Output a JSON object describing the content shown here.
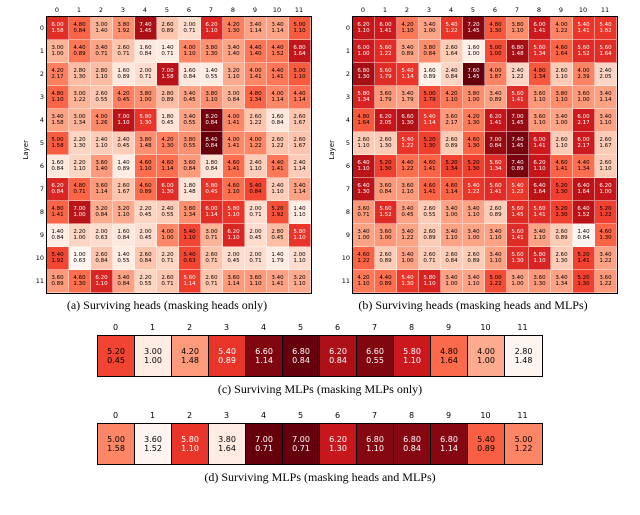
{
  "figure": {
    "background": "#ffffff",
    "colormap_low": "#fff5f0",
    "colormap_high": "#67000d"
  },
  "chart_data": [
    {
      "id": "a",
      "type": "heatmap",
      "caption": "(a) Surviving heads (masking heads only)",
      "ylabel": "Layer",
      "colormap": "Reds",
      "x_ticks": [
        "0",
        "1",
        "2",
        "3",
        "4",
        "5",
        "6",
        "7",
        "8",
        "9",
        "10",
        "11"
      ],
      "y_ticks": [
        "0",
        "1",
        "2",
        "3",
        "4",
        "5",
        "6",
        "7",
        "8",
        "9",
        "10",
        "11"
      ],
      "values": [
        [
          6.0,
          4.8,
          3.0,
          3.8,
          7.4,
          2.6,
          2.0,
          6.2,
          4.2,
          3.4,
          3.4,
          5.0
        ],
        [
          3.0,
          4.4,
          3.4,
          2.6,
          1.6,
          1.4,
          4.0,
          3.8,
          3.4,
          4.4,
          4.4,
          6.8
        ],
        [
          4.2,
          2.8,
          2.8,
          1.6,
          2.0,
          7.0,
          1.6,
          1.4,
          3.2,
          4.0,
          4.4,
          5.0
        ],
        [
          4.8,
          3.0,
          2.6,
          4.2,
          3.8,
          2.8,
          3.4,
          3.8,
          3.0,
          4.8,
          4.0,
          4.4
        ],
        [
          3.4,
          3.0,
          4.0,
          7.0,
          5.8,
          1.8,
          3.4,
          8.2,
          4.0,
          2.6,
          1.6,
          2.6
        ],
        [
          5.0,
          2.2,
          2.4,
          2.4,
          3.8,
          4.2,
          3.8,
          8.4,
          4.0,
          4.0,
          2.6,
          2.6
        ],
        [
          1.6,
          2.2,
          3.6,
          1.4,
          4.6,
          4.6,
          3.6,
          1.8,
          4.6,
          2.4,
          4.4,
          2.4
        ],
        [
          6.2,
          4.8,
          3.6,
          2.6,
          4.6,
          6.0,
          1.8,
          5.8,
          4.6,
          5.4,
          2.4,
          3.4
        ],
        [
          4.8,
          7.0,
          3.2,
          3.2,
          2.2,
          2.4,
          3.8,
          6.0,
          5.8,
          2.0,
          5.2,
          1.4
        ],
        [
          1.4,
          2.2,
          2.0,
          1.6,
          2.0,
          4.0,
          5.4,
          3.0,
          6.2,
          2.0,
          2.8,
          5.8
        ],
        [
          5.4,
          1.0,
          2.6,
          1.4,
          2.6,
          2.2,
          5.4,
          2.6,
          2.0,
          2.0,
          1.4,
          2.0
        ],
        [
          3.6,
          4.6,
          6.2,
          3.4,
          2.2,
          2.6,
          5.6,
          2.6,
          3.6,
          3.6,
          3.4,
          3.2
        ]
      ],
      "values_sub": [
        [
          1.58,
          0.84,
          1.4,
          1.92,
          1.45,
          0.89,
          0.71,
          1.1,
          1.3,
          1.14,
          1.14,
          1.1
        ],
        [
          1.0,
          0.89,
          0.71,
          0.71,
          0.84,
          0.71,
          1.1,
          1.3,
          1.4,
          1.4,
          1.52,
          1.64
        ],
        [
          2.17,
          1.3,
          1.1,
          0.89,
          0.71,
          1.58,
          0.84,
          0.55,
          1.1,
          1.41,
          1.41,
          1.1
        ],
        [
          1.1,
          1.22,
          0.55,
          0.45,
          1.0,
          0.89,
          0.45,
          1.1,
          0.84,
          1.34,
          1.14,
          1.14
        ],
        [
          1.58,
          1.34,
          1.26,
          1.1,
          1.3,
          0.45,
          0.55,
          0.84,
          1.41,
          1.22,
          0.84,
          1.67
        ],
        [
          1.58,
          1.3,
          1.1,
          0.45,
          1.48,
          1.3,
          0.55,
          0.84,
          1.41,
          1.22,
          1.22,
          1.67
        ],
        [
          0.84,
          1.1,
          1.4,
          0.89,
          1.1,
          1.14,
          0.84,
          0.84,
          1.41,
          1.1,
          1.41,
          1.14
        ],
        [
          0.84,
          0.71,
          1.14,
          1.67,
          0.89,
          1.3,
          1.48,
          0.45,
          1.1,
          0.84,
          1.1,
          1.14
        ],
        [
          1.41,
          1.0,
          0.84,
          1.1,
          0.45,
          0.55,
          1.34,
          1.14,
          1.1,
          0.71,
          1.92,
          1.1
        ],
        [
          0.84,
          1.0,
          0.63,
          0.84,
          0.45,
          1.0,
          1.1,
          0.71,
          1.1,
          0.45,
          0.45,
          1.1
        ],
        [
          1.92,
          0.63,
          0.84,
          0.55,
          0.84,
          0.71,
          0.63,
          0.71,
          0.45,
          0.71,
          1.79,
          1.1
        ],
        [
          0.89,
          1.3,
          1.1,
          0.84,
          0.55,
          0.71,
          1.14,
          0.71,
          1.14,
          1.1,
          1.41,
          1.1
        ]
      ]
    },
    {
      "id": "b",
      "type": "heatmap",
      "caption": "(b) Surviving heads (masking heads and MLPs)",
      "ylabel": "Layer",
      "colormap": "Reds",
      "x_ticks": [
        "0",
        "1",
        "2",
        "3",
        "4",
        "5",
        "6",
        "7",
        "8",
        "9",
        "10",
        "11"
      ],
      "y_ticks": [
        "0",
        "1",
        "2",
        "3",
        "4",
        "5",
        "6",
        "7",
        "8",
        "9",
        "10",
        "11"
      ],
      "values": [
        [
          6.2,
          6.0,
          4.2,
          3.4,
          5.4,
          7.2,
          4.8,
          3.8,
          6.0,
          4.0,
          5.4,
          5.4
        ],
        [
          6.0,
          5.6,
          3.4,
          3.8,
          2.6,
          1.6,
          5.0,
          6.8,
          5.6,
          4.6,
          5.6,
          5.6
        ],
        [
          6.8,
          5.6,
          5.4,
          1.6,
          2.4,
          7.6,
          4.0,
          2.4,
          4.8,
          2.6,
          4.0,
          2.4
        ],
        [
          5.8,
          3.6,
          3.4,
          5.0,
          4.2,
          3.8,
          3.4,
          5.6,
          3.6,
          3.8,
          3.6,
          3.4
        ],
        [
          4.8,
          6.2,
          6.6,
          5.4,
          3.6,
          4.2,
          6.2,
          7.0,
          3.6,
          3.4,
          6.0,
          3.4
        ],
        [
          2.6,
          2.6,
          5.4,
          5.2,
          2.6,
          4.6,
          7.0,
          7.4,
          6.0,
          2.6,
          6.0,
          2.6
        ],
        [
          6.4,
          5.2,
          4.4,
          4.6,
          5.2,
          5.2,
          5.6,
          7.4,
          6.2,
          4.6,
          4.4,
          2.6
        ],
        [
          6.4,
          3.6,
          3.6,
          4.6,
          4.6,
          5.4,
          5.6,
          5.4,
          6.4,
          5.2,
          6.4,
          6.2
        ],
        [
          3.6,
          5.6,
          3.4,
          2.6,
          3.4,
          3.4,
          2.6,
          5.6,
          5.6,
          5.2,
          6.4,
          5.2
        ],
        [
          3.4,
          3.6,
          3.4,
          2.6,
          3.4,
          3.4,
          3.4,
          5.6,
          3.4,
          2.6,
          1.4,
          4.6
        ],
        [
          4.6,
          2.6,
          3.4,
          2.6,
          2.6,
          2.6,
          3.4,
          5.6,
          5.8,
          2.6,
          5.2,
          3.4
        ],
        [
          4.2,
          4.4,
          5.4,
          5.8,
          3.4,
          3.4,
          5.0,
          3.4,
          3.6,
          3.4,
          5.2,
          3.6
        ]
      ],
      "values_sub": [
        [
          1.1,
          1.41,
          1.1,
          1.0,
          1.22,
          1.45,
          1.3,
          1.1,
          1.41,
          1.22,
          1.41,
          1.82
        ],
        [
          1.0,
          1.22,
          0.89,
          0.84,
          1.64,
          1.0,
          1.0,
          1.48,
          1.34,
          1.64,
          1.52,
          1.64
        ],
        [
          1.3,
          1.79,
          1.14,
          0.89,
          0.84,
          1.45,
          1.87,
          1.22,
          1.34,
          1.1,
          2.39,
          2.05
        ],
        [
          1.34,
          1.79,
          1.79,
          1.79,
          1.1,
          1.0,
          0.89,
          1.41,
          1.1,
          1.1,
          1.0,
          1.14
        ],
        [
          1.64,
          2.05,
          1.3,
          1.14,
          2.17,
          1.3,
          1.41,
          1.45,
          1.1,
          1.0,
          2.17,
          1.1
        ],
        [
          1.1,
          1.3,
          1.22,
          1.3,
          0.89,
          1.3,
          0.84,
          1.45,
          1.41,
          1.1,
          2.17,
          1.67
        ],
        [
          1.1,
          1.3,
          1.22,
          1.41,
          1.34,
          1.3,
          1.34,
          0.89,
          1.1,
          1.41,
          1.34,
          1.1
        ],
        [
          1.3,
          0.84,
          1.1,
          1.41,
          1.14,
          1.22,
          1.41,
          1.22,
          1.64,
          1.3,
          1.64,
          1.0
        ],
        [
          0.71,
          1.52,
          0.45,
          0.55,
          1.0,
          1.1,
          0.89,
          1.45,
          1.41,
          1.3,
          1.52,
          1.22
        ],
        [
          1.0,
          1.0,
          1.22,
          0.89,
          1.1,
          1.0,
          1.1,
          1.41,
          1.1,
          0.89,
          0.84,
          1.3
        ],
        [
          1.22,
          0.89,
          1.0,
          0.71,
          0.84,
          0.89,
          1.1,
          1.3,
          1.1,
          1.3,
          1.41,
          1.22
        ],
        [
          1.1,
          0.89,
          1.3,
          1.1,
          1.0,
          1.1,
          1.22,
          1.0,
          1.3,
          1.34,
          1.3,
          1.22
        ]
      ]
    },
    {
      "id": "c",
      "type": "heatmap",
      "caption": "(c) Surviving MLPs (masking MLPs only)",
      "colormap": "Reds",
      "x_ticks": [
        "0",
        "1",
        "2",
        "3",
        "4",
        "5",
        "6",
        "7",
        "8",
        "9",
        "10",
        "11"
      ],
      "values": [
        [
          5.2,
          3.0,
          4.2,
          5.4,
          6.6,
          6.8,
          6.2,
          6.6,
          5.8,
          4.8,
          4.0,
          2.8
        ]
      ],
      "values_sub": [
        [
          0.45,
          1.0,
          1.48,
          0.89,
          1.14,
          0.84,
          0.84,
          0.55,
          1.1,
          1.64,
          1.0,
          1.48
        ]
      ]
    },
    {
      "id": "d",
      "type": "heatmap",
      "caption": "(d) Surviving MLPs (masking heads and MLPs)",
      "colormap": "Reds",
      "x_ticks": [
        "0",
        "1",
        "2",
        "3",
        "4",
        "5",
        "6",
        "7",
        "8",
        "9",
        "10",
        "11"
      ],
      "values": [
        [
          5.0,
          3.6,
          5.8,
          3.8,
          7.0,
          7.0,
          6.2,
          6.8,
          6.8,
          6.8,
          5.4,
          5.0
        ]
      ],
      "values_sub": [
        [
          1.58,
          1.52,
          1.1,
          1.64,
          0.71,
          0.71,
          1.3,
          1.1,
          0.84,
          1.14,
          0.89,
          1.22
        ]
      ]
    }
  ]
}
